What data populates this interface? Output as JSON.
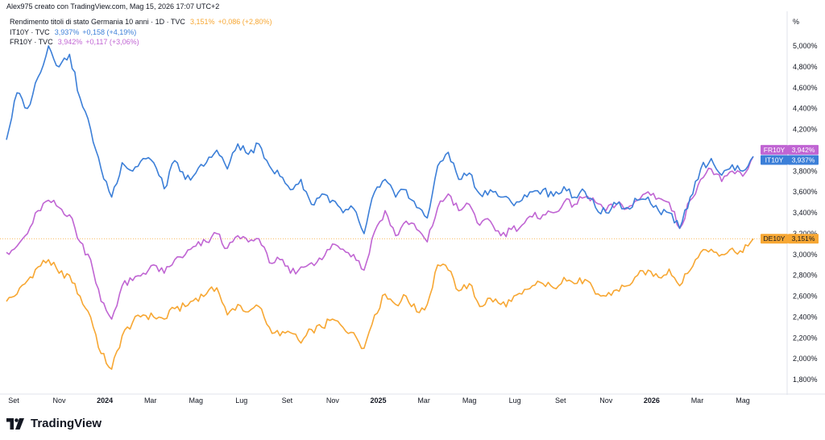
{
  "header": {
    "credit": "Alex975 creato con TradingView.com, Mag 15, 2026 17:07 UTC+2"
  },
  "legend": [
    {
      "label": "Rendimento titoli di stato Germania 10 anni · 1D · TVC",
      "value": "3,151%",
      "change": "+0,086 (+2,80%)",
      "color": "#f7a733"
    },
    {
      "label": "IT10Y · TVC",
      "value": "3,937%",
      "change": "+0,158 (+4,19%)",
      "color": "#3c7fd8"
    },
    {
      "label": "FR10Y · TVC",
      "value": "3,942%",
      "change": "+0,117 (+3,06%)",
      "color": "#c065d3"
    }
  ],
  "brand": {
    "name": "TradingView",
    "logo_icon": "tradingview-logo-icon"
  },
  "chart_data": {
    "type": "line",
    "x_labels": [
      "Set",
      "Nov",
      "2024",
      "Mar",
      "Mag",
      "Lug",
      "Set",
      "Nov",
      "2025",
      "Mar",
      "Mag",
      "Lug",
      "Set",
      "Nov",
      "2026",
      "Mar",
      "Mag"
    ],
    "x_label_bold": [
      false,
      false,
      true,
      false,
      false,
      false,
      false,
      false,
      true,
      false,
      false,
      false,
      false,
      false,
      true,
      false,
      false
    ],
    "y_unit": "%",
    "y_ticks": [
      "5,000%",
      "4,800%",
      "4,600%",
      "4,400%",
      "4,200%",
      "4,000%",
      "3,800%",
      "3,600%",
      "3,400%",
      "3,200%",
      "3,000%",
      "2,800%",
      "2,600%",
      "2,400%",
      "2,200%",
      "2,000%",
      "1,800%"
    ],
    "y_tick_values": [
      5.0,
      4.8,
      4.6,
      4.4,
      4.2,
      4.0,
      3.8,
      3.6,
      3.4,
      3.2,
      3.0,
      2.8,
      2.6,
      2.4,
      2.2,
      2.0,
      1.8
    ],
    "ylim": [
      1.7,
      5.3
    ],
    "series": [
      {
        "name": "IT10Y",
        "tag": "IT10Y",
        "last": "3,937%",
        "color": "#3c7fd8",
        "values": [
          4.1,
          4.55,
          4.4,
          4.7,
          5.0,
          4.8,
          4.92,
          4.5,
          4.2,
          3.82,
          3.55,
          3.88,
          3.8,
          3.92,
          3.88,
          3.63,
          3.9,
          3.72,
          3.78,
          3.88,
          4.0,
          3.82,
          4.06,
          3.96,
          4.06,
          3.85,
          3.75,
          3.62,
          3.72,
          3.48,
          3.58,
          3.52,
          3.4,
          3.44,
          3.2,
          3.6,
          3.72,
          3.55,
          3.62,
          3.45,
          3.35,
          3.85,
          3.98,
          3.72,
          3.78,
          3.58,
          3.62,
          3.55,
          3.5,
          3.52,
          3.6,
          3.62,
          3.56,
          3.65,
          3.55,
          3.6,
          3.45,
          3.4,
          3.48,
          3.45,
          3.52,
          3.55,
          3.42,
          3.4,
          3.25,
          3.55,
          3.82,
          3.92,
          3.76,
          3.86,
          3.8,
          3.94
        ]
      },
      {
        "name": "FR10Y",
        "tag": "FR10Y",
        "last": "3,942%",
        "color": "#c065d3",
        "values": [
          3.02,
          3.08,
          3.2,
          3.42,
          3.52,
          3.45,
          3.38,
          3.12,
          2.95,
          2.55,
          2.38,
          2.7,
          2.75,
          2.82,
          2.9,
          2.82,
          2.95,
          3.0,
          3.08,
          3.12,
          3.2,
          3.06,
          3.18,
          3.12,
          3.15,
          2.92,
          2.95,
          2.82,
          2.88,
          2.92,
          2.95,
          3.1,
          3.05,
          3.0,
          2.85,
          3.22,
          3.42,
          3.18,
          3.32,
          3.24,
          3.12,
          3.45,
          3.58,
          3.42,
          3.48,
          3.28,
          3.32,
          3.18,
          3.24,
          3.28,
          3.36,
          3.38,
          3.4,
          3.5,
          3.48,
          3.55,
          3.5,
          3.42,
          3.48,
          3.44,
          3.52,
          3.6,
          3.54,
          3.5,
          3.25,
          3.52,
          3.72,
          3.82,
          3.7,
          3.8,
          3.75,
          3.94
        ]
      },
      {
        "name": "DE10Y",
        "tag": "DE10Y",
        "last": "3,151%",
        "color": "#f7a733",
        "values": [
          2.55,
          2.62,
          2.75,
          2.88,
          2.95,
          2.82,
          2.8,
          2.6,
          2.4,
          2.05,
          1.9,
          2.22,
          2.35,
          2.42,
          2.4,
          2.38,
          2.48,
          2.5,
          2.58,
          2.62,
          2.68,
          2.42,
          2.52,
          2.45,
          2.5,
          2.3,
          2.22,
          2.25,
          2.15,
          2.28,
          2.3,
          2.38,
          2.3,
          2.25,
          2.1,
          2.42,
          2.62,
          2.52,
          2.6,
          2.45,
          2.52,
          2.9,
          2.85,
          2.65,
          2.72,
          2.5,
          2.58,
          2.52,
          2.55,
          2.62,
          2.7,
          2.72,
          2.68,
          2.78,
          2.72,
          2.76,
          2.62,
          2.6,
          2.66,
          2.7,
          2.8,
          2.85,
          2.78,
          2.86,
          2.7,
          2.85,
          3.02,
          3.05,
          3.0,
          3.06,
          3.02,
          3.15
        ]
      }
    ],
    "crosshair_value": 3.151,
    "grid": false,
    "legend_position": "top-left"
  }
}
